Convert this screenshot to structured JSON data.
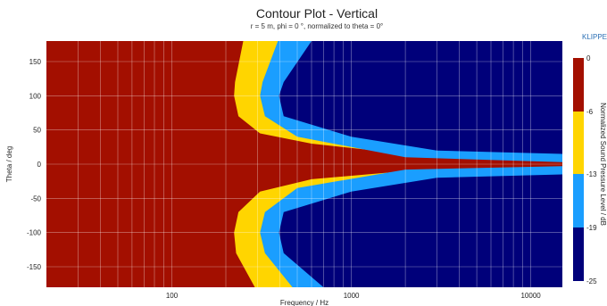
{
  "chart_data": {
    "type": "heatmap",
    "title": "Contour Plot - Vertical",
    "subtitle": "r = 5 m, phi = 0 °, normalized to theta = 0°",
    "xlabel": "Frequency / Hz",
    "ylabel": "Theta / deg",
    "x_scale": "log",
    "xlim": [
      20,
      15000
    ],
    "ylim": [
      -180,
      180
    ],
    "x_ticks": [
      100,
      1000,
      10000
    ],
    "x_tick_labels": [
      "100",
      "1000",
      "10000"
    ],
    "y_ticks": [
      150,
      100,
      50,
      0,
      -50,
      -100,
      -150
    ],
    "y_tick_labels": [
      "150",
      "100",
      "50",
      "0",
      "-50",
      "-100",
      "-150"
    ],
    "grid": true,
    "colorbar": {
      "label": "Normalized Sound Pressure Level / dB",
      "ticks": [
        0,
        -6,
        -13,
        -19,
        -25
      ],
      "tick_labels": [
        "0",
        "-6",
        "-13",
        "-19",
        "-25"
      ],
      "bands": [
        {
          "range": [
            -6,
            0
          ],
          "color": "#a30f00"
        },
        {
          "range": [
            -13,
            -6
          ],
          "color": "#ffd500"
        },
        {
          "range": [
            -19,
            -13
          ],
          "color": "#1a9eff"
        },
        {
          "range": [
            -25,
            -19
          ],
          "color": "#00007a"
        }
      ]
    },
    "contour_boundaries": [
      {
        "level_db": -6,
        "points": [
          [
            250,
            180
          ],
          [
            225,
            120
          ],
          [
            222,
            100
          ],
          [
            235,
            70
          ],
          [
            310,
            45
          ],
          [
            600,
            30
          ],
          [
            2000,
            15
          ],
          [
            15000,
            6
          ],
          [
            15000,
            -6
          ],
          [
            2000,
            -10
          ],
          [
            600,
            -22
          ],
          [
            310,
            -40
          ],
          [
            235,
            -70
          ],
          [
            222,
            -100
          ],
          [
            228,
            -130
          ],
          [
            290,
            -180
          ]
        ]
      },
      {
        "level_db": -13,
        "points": [
          [
            390,
            180
          ],
          [
            320,
            120
          ],
          [
            310,
            100
          ],
          [
            330,
            70
          ],
          [
            500,
            40
          ],
          [
            2000,
            10
          ],
          [
            15000,
            3
          ],
          [
            15000,
            -3
          ],
          [
            2000,
            -8
          ],
          [
            500,
            -35
          ],
          [
            330,
            -70
          ],
          [
            310,
            -100
          ],
          [
            330,
            -130
          ],
          [
            470,
            -180
          ]
        ]
      },
      {
        "level_db": -19,
        "points": [
          [
            600,
            180
          ],
          [
            420,
            120
          ],
          [
            395,
            100
          ],
          [
            420,
            70
          ],
          [
            1000,
            40
          ],
          [
            3000,
            20
          ],
          [
            15000,
            15
          ],
          [
            15000,
            -15
          ],
          [
            3000,
            -20
          ],
          [
            1000,
            -40
          ],
          [
            420,
            -70
          ],
          [
            395,
            -100
          ],
          [
            420,
            -130
          ],
          [
            700,
            -180
          ]
        ]
      }
    ]
  },
  "brand": "KLIPPEL"
}
